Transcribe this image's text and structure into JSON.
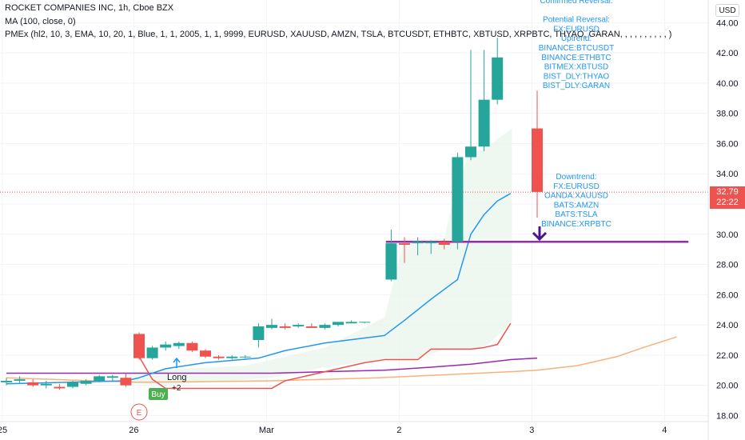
{
  "header": {
    "symbol_line": "ROCKET COMPANIES INC, 1h, Cboe BZX",
    "ma_line": "MA (100, close, 0)",
    "pmex_line": "PMEx (hl2, 10, 3, EMA, 10, 20, 1, Blue, 1, 1, 2005, 1, 1, 9999, EURUSD, XAUUSD, AMZN, TSLA, BTCUSDT, ETHBTC, XBTUSD, XRPBTC, THYAO, GARAN, , , , , , , , , , )"
  },
  "currency_button": "USD",
  "last_price": {
    "price": "32.79",
    "countdown": "22:22",
    "value": 32.79
  },
  "colors": {
    "up": "#26a69a",
    "down": "#ef5350",
    "ema_fast": "#2196f3",
    "ma100": "#f7b27a",
    "red_line": "#ef5350",
    "purple_line": "#9c27b0",
    "level": "#9c27b0",
    "annotation_text": "#2196f3",
    "cloud": "#e8f5e9"
  },
  "annotations": {
    "block_top": [
      "Confirmed Reversal:",
      "",
      "Potential Reversal:",
      "FX:EURUSD",
      "Uptrend:",
      "BINANCE:BTCUSDT",
      "BINANCE:ETHBTC",
      "BITMEX:XBTUSD",
      "BIST_DLY:THYAO",
      "BIST_DLY:GARAN"
    ],
    "block_bottom": [
      "Downtrend:",
      "FX:EURUSD",
      "OANDA:XAUUSD",
      "BATS:AMZN",
      "BATS:TSLA",
      "BINANCE:XRPBTC"
    ]
  },
  "markers": {
    "long_label": "Long",
    "long_count": "+2",
    "buy_label": "Buy",
    "earnings_label": "E"
  },
  "chart_data": {
    "type": "candlestick",
    "y_ticks": [
      "18.00",
      "20.00",
      "22.00",
      "24.00",
      "26.00",
      "28.00",
      "30.00",
      "32.00",
      "34.00",
      "36.00",
      "38.00",
      "40.00",
      "42.00",
      "44.00"
    ],
    "y_tick_values": [
      18,
      20,
      22,
      24,
      26,
      28,
      30,
      32,
      34,
      36,
      38,
      40,
      42,
      44
    ],
    "ylim": [
      17.6,
      45.5
    ],
    "x_ticks": [
      {
        "label": "25",
        "bar": -0.3
      },
      {
        "label": "26",
        "bar": 9.6
      },
      {
        "label": "Mar",
        "bar": 19.6
      },
      {
        "label": "2",
        "bar": 29.6
      },
      {
        "label": "3",
        "bar": 39.6
      },
      {
        "label": "4",
        "bar": 49.6
      }
    ],
    "bar_count": 51,
    "candles": [
      {
        "i": 0,
        "o": 20.2,
        "h": 20.5,
        "l": 20.0,
        "c": 20.3
      },
      {
        "i": 1,
        "o": 20.3,
        "h": 20.6,
        "l": 20.1,
        "c": 20.4
      },
      {
        "i": 2,
        "o": 20.2,
        "h": 20.4,
        "l": 19.9,
        "c": 20.0
      },
      {
        "i": 3,
        "o": 20.0,
        "h": 20.3,
        "l": 19.8,
        "c": 20.1
      },
      {
        "i": 4,
        "o": 19.9,
        "h": 20.1,
        "l": 19.7,
        "c": 19.8
      },
      {
        "i": 5,
        "o": 19.9,
        "h": 20.3,
        "l": 19.8,
        "c": 20.2
      },
      {
        "i": 6,
        "o": 20.1,
        "h": 20.4,
        "l": 20.0,
        "c": 20.3
      },
      {
        "i": 7,
        "o": 20.3,
        "h": 20.7,
        "l": 20.2,
        "c": 20.6
      },
      {
        "i": 8,
        "o": 20.5,
        "h": 20.7,
        "l": 20.3,
        "c": 20.6
      },
      {
        "i": 9,
        "o": 20.5,
        "h": 20.8,
        "l": 19.9,
        "c": 20.0
      },
      {
        "i": 10,
        "o": 23.4,
        "h": 23.5,
        "l": 21.7,
        "c": 21.8
      },
      {
        "i": 11,
        "o": 21.8,
        "h": 22.6,
        "l": 21.7,
        "c": 22.5
      },
      {
        "i": 12,
        "o": 22.5,
        "h": 22.9,
        "l": 22.3,
        "c": 22.7
      },
      {
        "i": 13,
        "o": 22.6,
        "h": 22.9,
        "l": 22.4,
        "c": 22.8
      },
      {
        "i": 14,
        "o": 22.8,
        "h": 22.9,
        "l": 22.2,
        "c": 22.3
      },
      {
        "i": 15,
        "o": 22.3,
        "h": 22.4,
        "l": 21.8,
        "c": 21.9
      },
      {
        "i": 16,
        "o": 21.9,
        "h": 22.0,
        "l": 21.7,
        "c": 21.8
      },
      {
        "i": 17,
        "o": 21.8,
        "h": 22.0,
        "l": 21.7,
        "c": 21.9
      },
      {
        "i": 18,
        "o": 21.9,
        "h": 22.0,
        "l": 21.8,
        "c": 21.9
      },
      {
        "i": 19,
        "o": 23.0,
        "h": 24.1,
        "l": 22.5,
        "c": 23.9
      },
      {
        "i": 20,
        "o": 23.8,
        "h": 24.4,
        "l": 23.7,
        "c": 24.0
      },
      {
        "i": 21,
        "o": 23.9,
        "h": 24.1,
        "l": 23.7,
        "c": 23.8
      },
      {
        "i": 22,
        "o": 23.9,
        "h": 24.1,
        "l": 23.8,
        "c": 24.0
      },
      {
        "i": 23,
        "o": 23.9,
        "h": 24.1,
        "l": 23.8,
        "c": 23.8
      },
      {
        "i": 24,
        "o": 23.8,
        "h": 24.1,
        "l": 23.7,
        "c": 24.0
      },
      {
        "i": 25,
        "o": 24.0,
        "h": 24.2,
        "l": 23.9,
        "c": 24.2
      },
      {
        "i": 26,
        "o": 24.1,
        "h": 24.3,
        "l": 24.1,
        "c": 24.2
      },
      {
        "i": 27,
        "o": 24.2,
        "h": 24.2,
        "l": 24.1,
        "c": 24.2
      },
      {
        "i": 29,
        "o": 27.0,
        "h": 30.3,
        "l": 26.9,
        "c": 29.4
      },
      {
        "i": 30,
        "o": 29.4,
        "h": 29.8,
        "l": 28.1,
        "c": 29.3
      },
      {
        "i": 31,
        "o": 29.4,
        "h": 29.8,
        "l": 28.6,
        "c": 29.5
      },
      {
        "i": 32,
        "o": 29.4,
        "h": 29.6,
        "l": 28.7,
        "c": 29.5
      },
      {
        "i": 33,
        "o": 29.5,
        "h": 29.7,
        "l": 29.0,
        "c": 29.3
      },
      {
        "i": 34,
        "o": 29.5,
        "h": 35.4,
        "l": 29.0,
        "c": 35.1
      },
      {
        "i": 35,
        "o": 35.1,
        "h": 42.2,
        "l": 34.9,
        "c": 35.8
      },
      {
        "i": 36,
        "o": 35.8,
        "h": 42.2,
        "l": 35.5,
        "c": 38.9
      },
      {
        "i": 37,
        "o": 38.9,
        "h": 43.0,
        "l": 38.6,
        "c": 41.7
      },
      {
        "i": 40,
        "o": 37.0,
        "h": 39.5,
        "l": 31.1,
        "c": 32.8
      }
    ],
    "level_line": {
      "value": 29.5,
      "from_bar": 28.6,
      "to_bar": 51.4
    },
    "current_price_line": 32.79,
    "ema_fast": {
      "x": [
        0,
        9,
        10,
        12,
        15,
        19,
        21,
        24,
        28.5,
        30,
        32,
        34,
        35,
        36,
        37,
        38
      ],
      "y": [
        20.1,
        20.3,
        20.5,
        21.1,
        21.5,
        21.8,
        22.3,
        22.8,
        23.3,
        24.3,
        25.7,
        27.0,
        30.0,
        31.3,
        32.2,
        32.7
      ]
    },
    "red_line": {
      "x": [
        10,
        11,
        12,
        20,
        21,
        25,
        27,
        28.5,
        31,
        32,
        33,
        35,
        36,
        37,
        38
      ],
      "y": [
        21.9,
        20.4,
        19.8,
        19.8,
        20.3,
        21.1,
        21.5,
        21.7,
        21.7,
        22.4,
        22.4,
        22.4,
        22.5,
        22.7,
        24.1
      ]
    },
    "purple_line": {
      "x": [
        0,
        10,
        14,
        20,
        24,
        28.5,
        32,
        35,
        38,
        40
      ],
      "y": [
        20.8,
        20.8,
        20.8,
        20.8,
        20.9,
        21.0,
        21.2,
        21.4,
        21.7,
        21.8
      ]
    },
    "ma100": {
      "x": [
        0,
        10,
        20,
        28,
        33,
        38,
        40,
        43,
        46,
        48,
        50.5
      ],
      "y": [
        20.5,
        20.2,
        20.3,
        20.5,
        20.7,
        20.9,
        21.0,
        21.3,
        21.9,
        22.5,
        23.2
      ]
    },
    "cloud": {
      "upper": [
        [
          9,
          20.8
        ],
        [
          11,
          21.0
        ],
        [
          18,
          21.3
        ],
        [
          24,
          22.5
        ],
        [
          28.5,
          24.5
        ],
        [
          30,
          29.7
        ],
        [
          33,
          29.7
        ],
        [
          34,
          33.5
        ],
        [
          35,
          35.5
        ],
        [
          36,
          35.6
        ],
        [
          37,
          36.3
        ],
        [
          38.1,
          37.0
        ],
        [
          38.1,
          24.1
        ]
      ],
      "lower_x": [
        38.1,
        36,
        33,
        31,
        28.5,
        24,
        20,
        12,
        9
      ],
      "lower_y": [
        24.1,
        22.5,
        22.4,
        21.7,
        21.7,
        21.2,
        20.5,
        20.0,
        20.2
      ]
    }
  }
}
